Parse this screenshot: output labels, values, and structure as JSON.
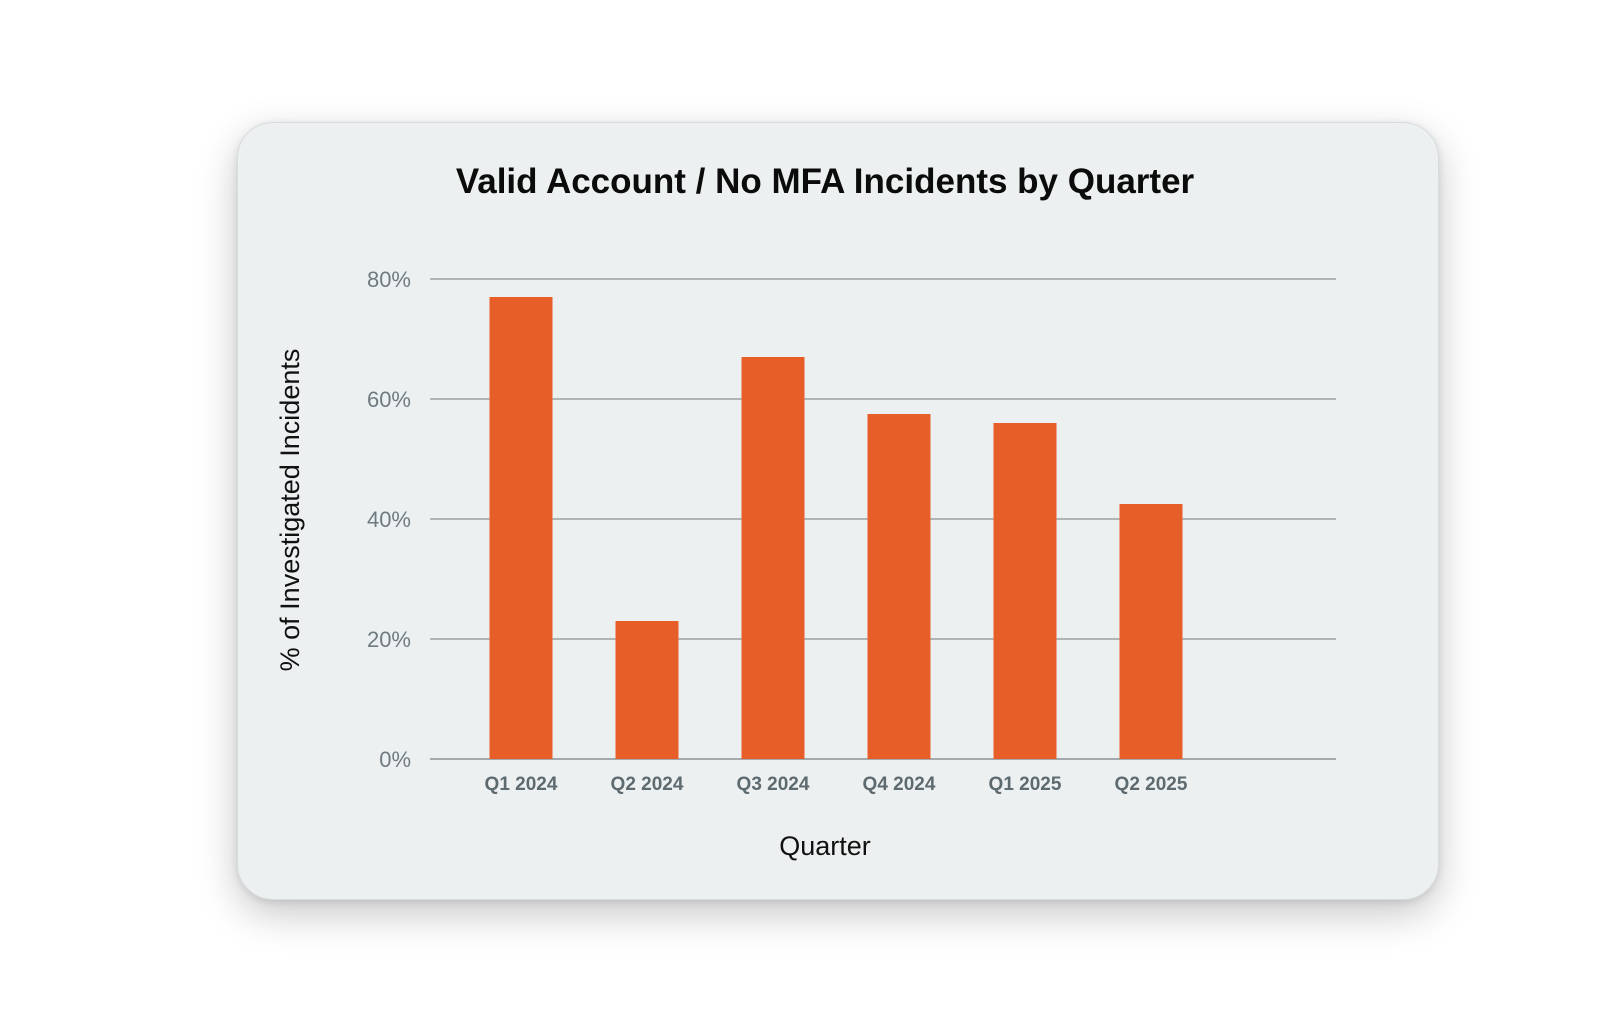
{
  "chart_data": {
    "type": "bar",
    "title": "Valid Account / No MFA Incidents by Quarter",
    "xlabel": "Quarter",
    "ylabel": "% of Investigated Incidents",
    "categories": [
      "Q1 2024",
      "Q2 2024",
      "Q3 2024",
      "Q4 2024",
      "Q1 2025",
      "Q2 2025"
    ],
    "values": [
      77,
      23,
      67,
      57.5,
      56,
      42.5
    ],
    "ylim": [
      0,
      80
    ],
    "yticks": [
      0,
      20,
      40,
      60,
      80
    ],
    "ytick_labels": [
      "0%",
      "20%",
      "40%",
      "60%",
      "80%"
    ],
    "grid": true,
    "legend": "none",
    "colors": {
      "bar": "#e85e28",
      "grid": "#8a9397",
      "card_bg": "#edf0f1"
    }
  }
}
